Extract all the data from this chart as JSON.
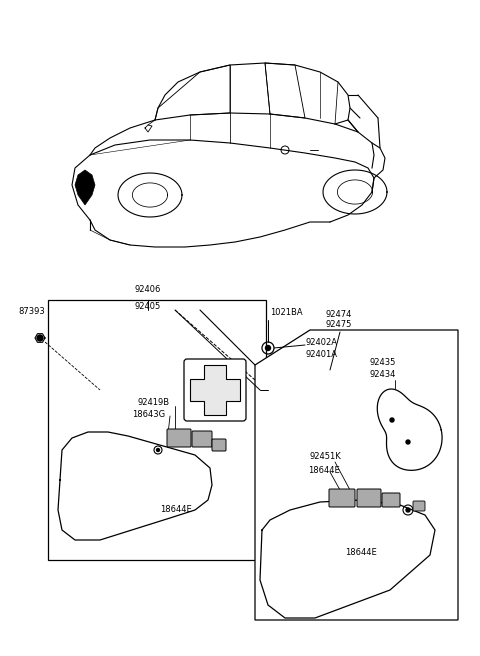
{
  "bg_color": "#ffffff",
  "line_color": "#000000",
  "fig_width": 4.8,
  "fig_height": 6.56,
  "dpi": 100,
  "labels": {
    "92406": "92406",
    "92405": "92405",
    "87393": "87393",
    "92474": "92474",
    "92475": "92475",
    "92419B": "92419B",
    "18643G": "18643G",
    "18644E_L": "18644E",
    "1021BA": "1021BA",
    "92402A": "92402A",
    "92401A": "92401A",
    "92435": "92435",
    "92434": "92434",
    "92451K": "92451K",
    "18644E_M": "18644E",
    "18644E_R": "18644E"
  }
}
